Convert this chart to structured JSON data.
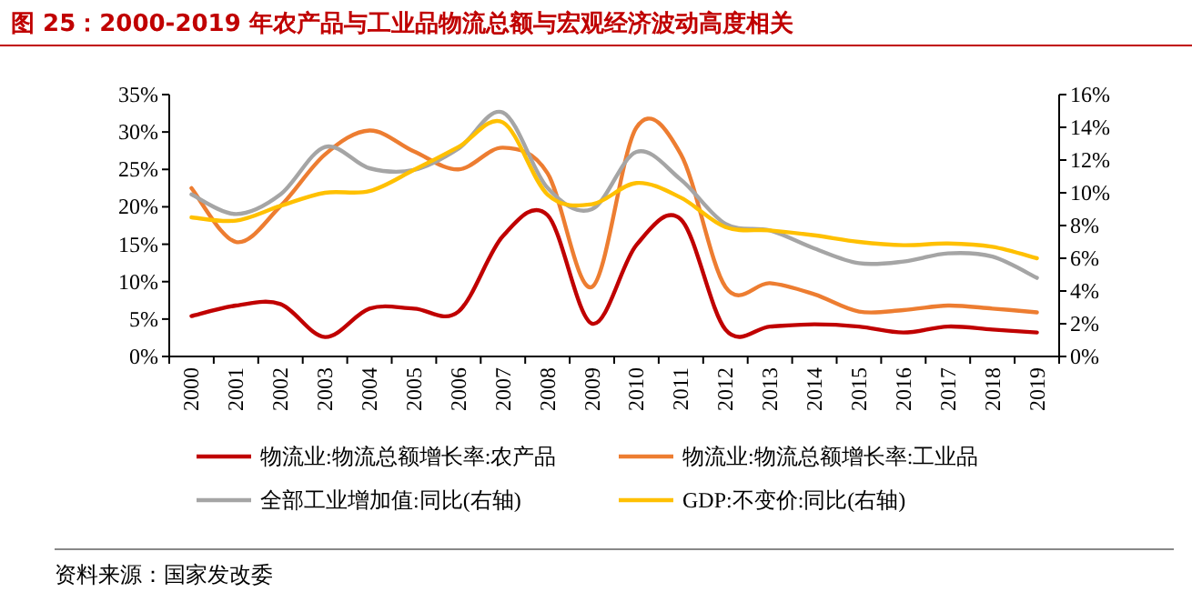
{
  "chart_data": {
    "type": "line",
    "title": "图 25：2000-2019 年农产品与工业品物流总额与宏观经济波动高度相关",
    "categories": [
      "2000",
      "2001",
      "2002",
      "2003",
      "2004",
      "2005",
      "2006",
      "2007",
      "2008",
      "2009",
      "2010",
      "2011",
      "2012",
      "2013",
      "2014",
      "2015",
      "2016",
      "2017",
      "2018",
      "2019"
    ],
    "series": [
      {
        "name": "物流业:物流总额增长率:农产品",
        "color": "#c00000",
        "values": [
          5.4,
          6.8,
          7.0,
          2.6,
          6.4,
          6.4,
          6.0,
          16.1,
          18.9,
          4.4,
          14.9,
          18.3,
          3.6,
          4.0,
          4.3,
          4.0,
          3.2,
          4.0,
          3.6,
          3.2
        ]
      },
      {
        "name": "物流业:物流总额增长率:工业品",
        "color": "#ed7d31",
        "values": [
          22.5,
          15.3,
          20.1,
          27.0,
          30.2,
          27.4,
          25.0,
          27.9,
          24.5,
          9.3,
          30.6,
          27.0,
          9.3,
          9.8,
          8.3,
          6.0,
          6.2,
          6.8,
          6.4,
          5.9
        ]
      },
      {
        "name": "全部工业增加值:同比(右轴)",
        "color": "#a5a5a5",
        "axis": "y2",
        "values": [
          9.9,
          8.7,
          9.9,
          12.8,
          11.5,
          11.4,
          12.7,
          14.9,
          10.3,
          9.0,
          12.5,
          10.8,
          8.1,
          7.7,
          6.6,
          5.7,
          5.8,
          6.3,
          6.1,
          4.8
        ]
      },
      {
        "name": "GDP:不变价:同比(右轴)",
        "color": "#ffc000",
        "axis": "y2",
        "values": [
          8.5,
          8.3,
          9.2,
          10.0,
          10.1,
          11.4,
          12.8,
          14.3,
          9.9,
          9.3,
          10.6,
          9.7,
          7.9,
          7.7,
          7.4,
          7.0,
          6.8,
          6.9,
          6.7,
          6.0
        ]
      }
    ],
    "ylim": [
      0,
      35
    ],
    "yticks": [
      {
        "value": 0,
        "label": "0%"
      },
      {
        "value": 5,
        "label": "5%"
      },
      {
        "value": 10,
        "label": "10%"
      },
      {
        "value": 15,
        "label": "15%"
      },
      {
        "value": 20,
        "label": "20%"
      },
      {
        "value": 25,
        "label": "25%"
      },
      {
        "value": 30,
        "label": "30%"
      },
      {
        "value": 35,
        "label": "35%"
      }
    ],
    "y2lim": [
      0,
      16
    ],
    "y2ticks": [
      {
        "value": 0,
        "label": "0%"
      },
      {
        "value": 2,
        "label": "2%"
      },
      {
        "value": 4,
        "label": "4%"
      },
      {
        "value": 6,
        "label": "6%"
      },
      {
        "value": 8,
        "label": "8%"
      },
      {
        "value": 10,
        "label": "10%"
      },
      {
        "value": 12,
        "label": "12%"
      },
      {
        "value": 14,
        "label": "14%"
      },
      {
        "value": 16,
        "label": "16%"
      }
    ],
    "legend": "bottom",
    "grid": false,
    "annotations": [
      "资料来源：国家发改委"
    ]
  }
}
